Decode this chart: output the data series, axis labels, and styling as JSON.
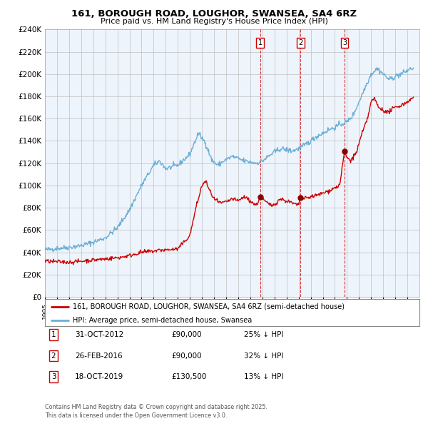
{
  "title1": "161, BOROUGH ROAD, LOUGHOR, SWANSEA, SA4 6RZ",
  "title2": "Price paid vs. HM Land Registry's House Price Index (HPI)",
  "legend_red": "161, BOROUGH ROAD, LOUGHOR, SWANSEA, SA4 6RZ (semi-detached house)",
  "legend_blue": "HPI: Average price, semi-detached house, Swansea",
  "transactions": [
    {
      "num": 1,
      "date": "31-OCT-2012",
      "price": "£90,000",
      "hpi_note": "25% ↓ HPI",
      "x_year": 2012.83
    },
    {
      "num": 2,
      "date": "26-FEB-2016",
      "price": "£90,000",
      "hpi_note": "32% ↓ HPI",
      "x_year": 2016.15
    },
    {
      "num": 3,
      "date": "18-OCT-2019",
      "price": "£130,500",
      "hpi_note": "13% ↓ HPI",
      "x_year": 2019.8
    }
  ],
  "footer": "Contains HM Land Registry data © Crown copyright and database right 2025.\nThis data is licensed under the Open Government Licence v3.0.",
  "ylim": [
    0,
    240000
  ],
  "xlim_start": 1995,
  "xlim_end": 2026,
  "red_color": "#cc0000",
  "blue_color": "#6baed6",
  "shade_color": "#ddeeff",
  "background_color": "#ffffff",
  "grid_color": "#cccccc",
  "chart_bg": "#eef4fb"
}
